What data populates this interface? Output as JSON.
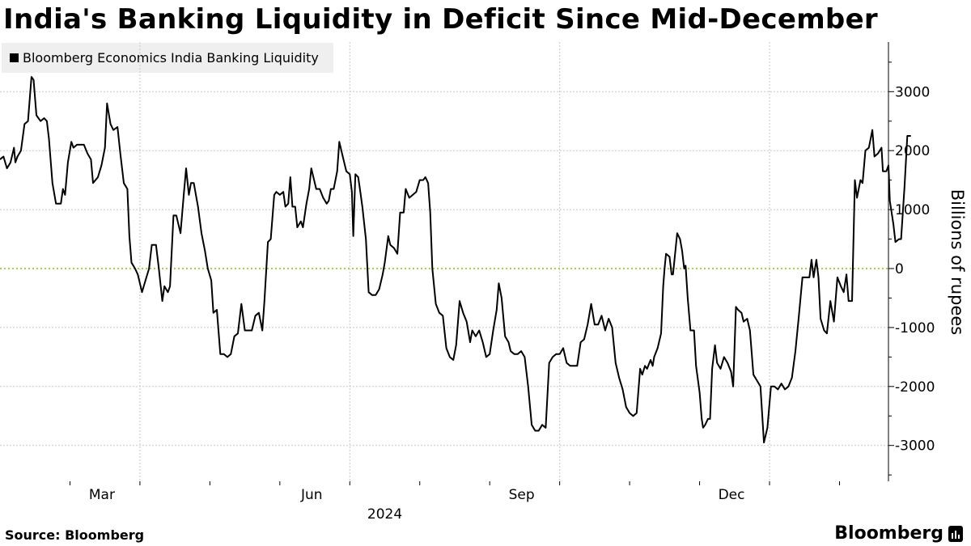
{
  "title": "India's Banking Liquidity in Deficit Since Mid-December",
  "legend_label": "Bloomberg Economics India Banking Liquidity",
  "source": "Source: Bloomberg",
  "brand": "Bloomberg",
  "brand_icon": "bloomberg-terminal-icon",
  "colors": {
    "line": "#000000",
    "zero_line": "#9fd93a",
    "grid": "#c8c8c8",
    "legend_bg": "#efefef"
  },
  "chart_data": {
    "type": "line",
    "title": "India's Banking Liquidity in Deficit Since Mid-December",
    "xlabel": "2024",
    "ylabel": "Billions of rupees",
    "ylim": [
      -3800,
      3800
    ],
    "xlim": [
      0,
      12.7
    ],
    "x_unit": "months since 2024-01-01",
    "y_ticks": [
      3000,
      2000,
      1000,
      0,
      -1000,
      -2000,
      -3000
    ],
    "y_tick_labels": [
      "3000",
      "2000",
      "1000",
      "0",
      "-1000",
      "-2000",
      "-3000"
    ],
    "x_ticks": [
      {
        "x": 2.0,
        "label": "Mar"
      },
      {
        "x": 5.0,
        "label": "Jun"
      },
      {
        "x": 8.0,
        "label": "Sep"
      },
      {
        "x": 11.0,
        "label": "Dec"
      }
    ],
    "x_year_label": {
      "x": 5.5,
      "label": "2024"
    },
    "reference_line": {
      "y": 0,
      "style": "dotted"
    },
    "series": [
      {
        "name": "Bloomberg Economics India Banking Liquidity",
        "points": [
          [
            0.0,
            1850
          ],
          [
            0.05,
            1900
          ],
          [
            0.1,
            1700
          ],
          [
            0.15,
            1800
          ],
          [
            0.2,
            2050
          ],
          [
            0.22,
            1800
          ],
          [
            0.25,
            1900
          ],
          [
            0.3,
            2000
          ],
          [
            0.35,
            2450
          ],
          [
            0.4,
            2500
          ],
          [
            0.45,
            3250
          ],
          [
            0.48,
            3200
          ],
          [
            0.52,
            2600
          ],
          [
            0.58,
            2500
          ],
          [
            0.63,
            2550
          ],
          [
            0.67,
            2500
          ],
          [
            0.7,
            2200
          ],
          [
            0.75,
            1450
          ],
          [
            0.8,
            1100
          ],
          [
            0.87,
            1100
          ],
          [
            0.9,
            1350
          ],
          [
            0.93,
            1250
          ],
          [
            0.97,
            1800
          ],
          [
            1.02,
            2150
          ],
          [
            1.05,
            2050
          ],
          [
            1.1,
            2100
          ],
          [
            1.2,
            2100
          ],
          [
            1.25,
            1950
          ],
          [
            1.3,
            1850
          ],
          [
            1.33,
            1450
          ],
          [
            1.4,
            1550
          ],
          [
            1.45,
            1750
          ],
          [
            1.5,
            2050
          ],
          [
            1.53,
            2800
          ],
          [
            1.58,
            2450
          ],
          [
            1.62,
            2350
          ],
          [
            1.68,
            2400
          ],
          [
            1.72,
            1950
          ],
          [
            1.77,
            1450
          ],
          [
            1.82,
            1350
          ],
          [
            1.85,
            550
          ],
          [
            1.88,
            100
          ],
          [
            1.93,
            0
          ],
          [
            1.97,
            -100
          ],
          [
            2.03,
            -400
          ],
          [
            2.08,
            -200
          ],
          [
            2.13,
            0
          ],
          [
            2.17,
            400
          ],
          [
            2.23,
            400
          ],
          [
            2.27,
            0
          ],
          [
            2.32,
            -550
          ],
          [
            2.35,
            -300
          ],
          [
            2.4,
            -400
          ],
          [
            2.43,
            -300
          ],
          [
            2.48,
            900
          ],
          [
            2.52,
            900
          ],
          [
            2.58,
            600
          ],
          [
            2.63,
            1300
          ],
          [
            2.66,
            1700
          ],
          [
            2.7,
            1250
          ],
          [
            2.73,
            1450
          ],
          [
            2.77,
            1450
          ],
          [
            2.83,
            1050
          ],
          [
            2.88,
            600
          ],
          [
            2.93,
            300
          ],
          [
            2.97,
            0
          ],
          [
            3.02,
            -200
          ],
          [
            3.05,
            -750
          ],
          [
            3.1,
            -700
          ],
          [
            3.15,
            -1450
          ],
          [
            3.2,
            -1450
          ],
          [
            3.25,
            -1500
          ],
          [
            3.3,
            -1450
          ],
          [
            3.35,
            -1150
          ],
          [
            3.4,
            -1100
          ],
          [
            3.45,
            -600
          ],
          [
            3.5,
            -1050
          ],
          [
            3.55,
            -1050
          ],
          [
            3.6,
            -1050
          ],
          [
            3.65,
            -800
          ],
          [
            3.7,
            -750
          ],
          [
            3.75,
            -1050
          ],
          [
            3.78,
            -550
          ],
          [
            3.83,
            450
          ],
          [
            3.87,
            500
          ],
          [
            3.92,
            1250
          ],
          [
            3.95,
            1300
          ],
          [
            4.0,
            1250
          ],
          [
            4.05,
            1300
          ],
          [
            4.08,
            1050
          ],
          [
            4.12,
            1100
          ],
          [
            4.15,
            1550
          ],
          [
            4.18,
            1050
          ],
          [
            4.22,
            1050
          ],
          [
            4.25,
            700
          ],
          [
            4.3,
            800
          ],
          [
            4.33,
            700
          ],
          [
            4.38,
            1100
          ],
          [
            4.42,
            1350
          ],
          [
            4.45,
            1700
          ],
          [
            4.48,
            1550
          ],
          [
            4.52,
            1350
          ],
          [
            4.57,
            1350
          ],
          [
            4.62,
            1200
          ],
          [
            4.67,
            1100
          ],
          [
            4.7,
            1150
          ],
          [
            4.73,
            1350
          ],
          [
            4.77,
            1350
          ],
          [
            4.82,
            1650
          ],
          [
            4.85,
            2150
          ],
          [
            4.9,
            1900
          ],
          [
            4.95,
            1650
          ],
          [
            5.0,
            1600
          ],
          [
            5.03,
            1300
          ],
          [
            5.05,
            550
          ],
          [
            5.08,
            1600
          ],
          [
            5.12,
            1550
          ],
          [
            5.15,
            1300
          ],
          [
            5.18,
            1050
          ],
          [
            5.23,
            500
          ],
          [
            5.27,
            -400
          ],
          [
            5.32,
            -450
          ],
          [
            5.37,
            -450
          ],
          [
            5.42,
            -350
          ],
          [
            5.47,
            -100
          ],
          [
            5.5,
            100
          ],
          [
            5.55,
            550
          ],
          [
            5.58,
            400
          ],
          [
            5.63,
            350
          ],
          [
            5.68,
            250
          ],
          [
            5.72,
            950
          ],
          [
            5.77,
            950
          ],
          [
            5.8,
            1350
          ],
          [
            5.85,
            1200
          ],
          [
            5.9,
            1250
          ],
          [
            5.95,
            1300
          ],
          [
            6.0,
            1500
          ],
          [
            6.05,
            1500
          ],
          [
            6.08,
            1550
          ],
          [
            6.12,
            1450
          ],
          [
            6.15,
            950
          ],
          [
            6.18,
            0
          ],
          [
            6.23,
            -600
          ],
          [
            6.28,
            -750
          ],
          [
            6.33,
            -800
          ],
          [
            6.38,
            -1350
          ],
          [
            6.43,
            -1500
          ],
          [
            6.48,
            -1550
          ],
          [
            6.52,
            -1300
          ],
          [
            6.57,
            -550
          ],
          [
            6.62,
            -750
          ],
          [
            6.67,
            -900
          ],
          [
            6.72,
            -1250
          ],
          [
            6.75,
            -1050
          ],
          [
            6.8,
            -1150
          ],
          [
            6.85,
            -1050
          ],
          [
            6.9,
            -1250
          ],
          [
            6.95,
            -1500
          ],
          [
            7.0,
            -1450
          ],
          [
            7.05,
            -1050
          ],
          [
            7.1,
            -700
          ],
          [
            7.13,
            -250
          ],
          [
            7.17,
            -500
          ],
          [
            7.22,
            -1150
          ],
          [
            7.27,
            -1250
          ],
          [
            7.3,
            -1400
          ],
          [
            7.35,
            -1450
          ],
          [
            7.4,
            -1450
          ],
          [
            7.45,
            -1400
          ],
          [
            7.5,
            -1500
          ],
          [
            7.55,
            -2000
          ],
          [
            7.6,
            -2650
          ],
          [
            7.65,
            -2750
          ],
          [
            7.7,
            -2750
          ],
          [
            7.75,
            -2650
          ],
          [
            7.8,
            -2700
          ],
          [
            7.85,
            -1600
          ],
          [
            7.9,
            -1500
          ],
          [
            7.95,
            -1450
          ],
          [
            8.0,
            -1450
          ],
          [
            8.05,
            -1350
          ],
          [
            8.1,
            -1600
          ],
          [
            8.15,
            -1650
          ],
          [
            8.2,
            -1650
          ],
          [
            8.25,
            -1650
          ],
          [
            8.3,
            -1250
          ],
          [
            8.35,
            -1200
          ],
          [
            8.4,
            -950
          ],
          [
            8.45,
            -600
          ],
          [
            8.5,
            -950
          ],
          [
            8.55,
            -950
          ],
          [
            8.6,
            -800
          ],
          [
            8.65,
            -1050
          ],
          [
            8.7,
            -850
          ],
          [
            8.75,
            -1000
          ],
          [
            8.8,
            -1600
          ],
          [
            8.85,
            -1850
          ],
          [
            8.9,
            -2050
          ],
          [
            8.95,
            -2350
          ],
          [
            9.0,
            -2450
          ],
          [
            9.05,
            -2500
          ],
          [
            9.1,
            -2450
          ],
          [
            9.15,
            -1700
          ],
          [
            9.18,
            -1800
          ],
          [
            9.22,
            -1650
          ],
          [
            9.25,
            -1700
          ],
          [
            9.3,
            -1550
          ],
          [
            9.33,
            -1650
          ],
          [
            9.35,
            -1500
          ],
          [
            9.4,
            -1350
          ],
          [
            9.45,
            -1100
          ],
          [
            9.48,
            -300
          ],
          [
            9.5,
            0
          ],
          [
            9.52,
            250
          ],
          [
            9.57,
            200
          ],
          [
            9.6,
            -100
          ],
          [
            9.62,
            -100
          ],
          [
            9.65,
            250
          ],
          [
            9.68,
            600
          ],
          [
            9.72,
            500
          ],
          [
            9.75,
            300
          ],
          [
            9.78,
            0
          ],
          [
            9.8,
            50
          ],
          [
            9.83,
            -500
          ],
          [
            9.87,
            -1050
          ],
          [
            9.92,
            -1050
          ],
          [
            9.95,
            -1650
          ],
          [
            10.0,
            -2100
          ],
          [
            10.03,
            -2550
          ],
          [
            10.05,
            -2700
          ],
          [
            10.08,
            -2650
          ],
          [
            10.12,
            -2550
          ],
          [
            10.15,
            -2550
          ],
          [
            10.18,
            -1700
          ],
          [
            10.22,
            -1300
          ],
          [
            10.25,
            -1600
          ],
          [
            10.3,
            -1700
          ],
          [
            10.35,
            -1500
          ],
          [
            10.4,
            -1600
          ],
          [
            10.45,
            -1750
          ],
          [
            10.48,
            -2000
          ],
          [
            10.52,
            -650
          ],
          [
            10.55,
            -700
          ],
          [
            10.6,
            -750
          ],
          [
            10.63,
            -900
          ],
          [
            10.68,
            -850
          ],
          [
            10.72,
            -1050
          ],
          [
            10.77,
            -1800
          ],
          [
            10.82,
            -1900
          ],
          [
            10.87,
            -2000
          ],
          [
            10.92,
            -2950
          ],
          [
            10.97,
            -2700
          ],
          [
            11.02,
            -2000
          ],
          [
            11.07,
            -2000
          ],
          [
            11.12,
            -2050
          ],
          [
            11.17,
            -1950
          ],
          [
            11.22,
            -2050
          ],
          [
            11.27,
            -2000
          ],
          [
            11.32,
            -1850
          ],
          [
            11.37,
            -1400
          ],
          [
            11.42,
            -800
          ],
          [
            11.47,
            -150
          ],
          [
            11.52,
            -150
          ],
          [
            11.57,
            -150
          ],
          [
            11.6,
            150
          ],
          [
            11.63,
            -150
          ],
          [
            11.67,
            150
          ],
          [
            11.7,
            -150
          ],
          [
            11.73,
            -850
          ],
          [
            11.78,
            -1050
          ],
          [
            11.82,
            -1100
          ],
          [
            11.87,
            -550
          ],
          [
            11.92,
            -900
          ],
          [
            11.97,
            -150
          ],
          [
            12.02,
            -300
          ],
          [
            12.06,
            -400
          ],
          [
            12.1,
            -100
          ],
          [
            12.13,
            -550
          ],
          [
            12.18,
            -550
          ],
          [
            12.22,
            1500
          ],
          [
            12.25,
            1200
          ],
          [
            12.3,
            1500
          ],
          [
            12.33,
            1450
          ],
          [
            12.37,
            2000
          ],
          [
            12.42,
            2050
          ],
          [
            12.47,
            2350
          ],
          [
            12.5,
            1900
          ],
          [
            12.55,
            1950
          ],
          [
            12.6,
            2050
          ],
          [
            12.62,
            1650
          ],
          [
            12.67,
            1650
          ],
          [
            12.7,
            1750
          ],
          [
            12.72,
            1150
          ],
          [
            12.77,
            750
          ],
          [
            12.8,
            450
          ],
          [
            12.85,
            500
          ],
          [
            12.88,
            500
          ],
          [
            12.93,
            1400
          ],
          [
            12.97,
            2250
          ],
          [
            13.02,
            2250
          ]
        ]
      }
    ]
  }
}
